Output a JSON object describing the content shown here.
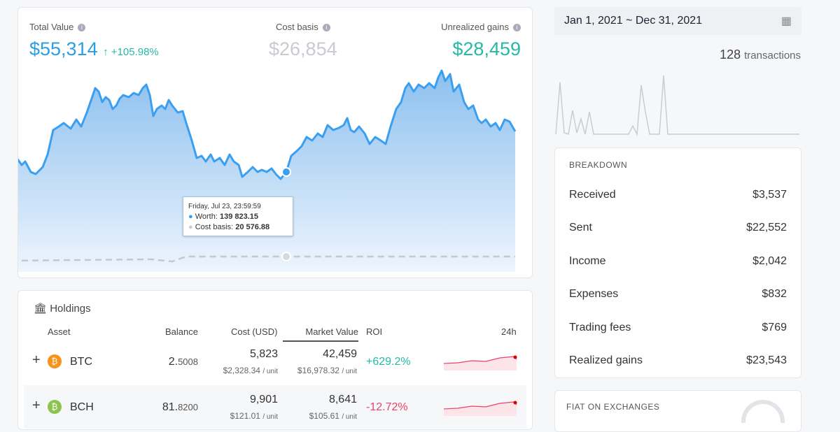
{
  "summary": {
    "total_value": {
      "label": "Total Value",
      "value": "$55,314",
      "change": "+105.98%"
    },
    "cost_basis": {
      "label": "Cost basis",
      "value": "$26,854"
    },
    "unrealized_gains": {
      "label": "Unrealized gains",
      "value": "$28,459"
    }
  },
  "tooltip": {
    "date": "Friday, Jul 23, 23:59:59",
    "worth_label": "Worth:",
    "worth": "139 823.15",
    "cost_label": "Cost basis:",
    "cost": "20 576.88"
  },
  "holdings": {
    "title": "Holdings",
    "columns": [
      "Asset",
      "Balance",
      "Cost (USD)",
      "Market Value",
      "ROI",
      "24h"
    ],
    "rows": [
      {
        "asset": "BTC",
        "balance_int": "2.",
        "balance_dec": "5008",
        "cost": "5,823",
        "cost_unit": "$2,328.34",
        "market": "42,459",
        "market_unit": "$16,978.32",
        "unit": "/ unit",
        "roi": "+629.2%"
      },
      {
        "asset": "BCH",
        "balance_int": "81.",
        "balance_dec": "8200",
        "cost": "9,901",
        "cost_unit": "$121.01",
        "market": "8,641",
        "market_unit": "$105.61",
        "unit": "/ unit",
        "roi": "-12.72%"
      }
    ]
  },
  "date_range": "Jan 1, 2021 ~ Dec 31, 2021",
  "transactions": {
    "count": "128",
    "label": "transactions"
  },
  "breakdown": {
    "title": "BREAKDOWN",
    "items": [
      {
        "label": "Received",
        "value": "$3,537"
      },
      {
        "label": "Sent",
        "value": "$22,552"
      },
      {
        "label": "Income",
        "value": "$2,042"
      },
      {
        "label": "Expenses",
        "value": "$832"
      },
      {
        "label": "Trading fees",
        "value": "$769"
      },
      {
        "label": "Realized gains",
        "value": "$23,543"
      }
    ]
  },
  "fiat": {
    "title": "FIAT ON EXCHANGES"
  }
}
